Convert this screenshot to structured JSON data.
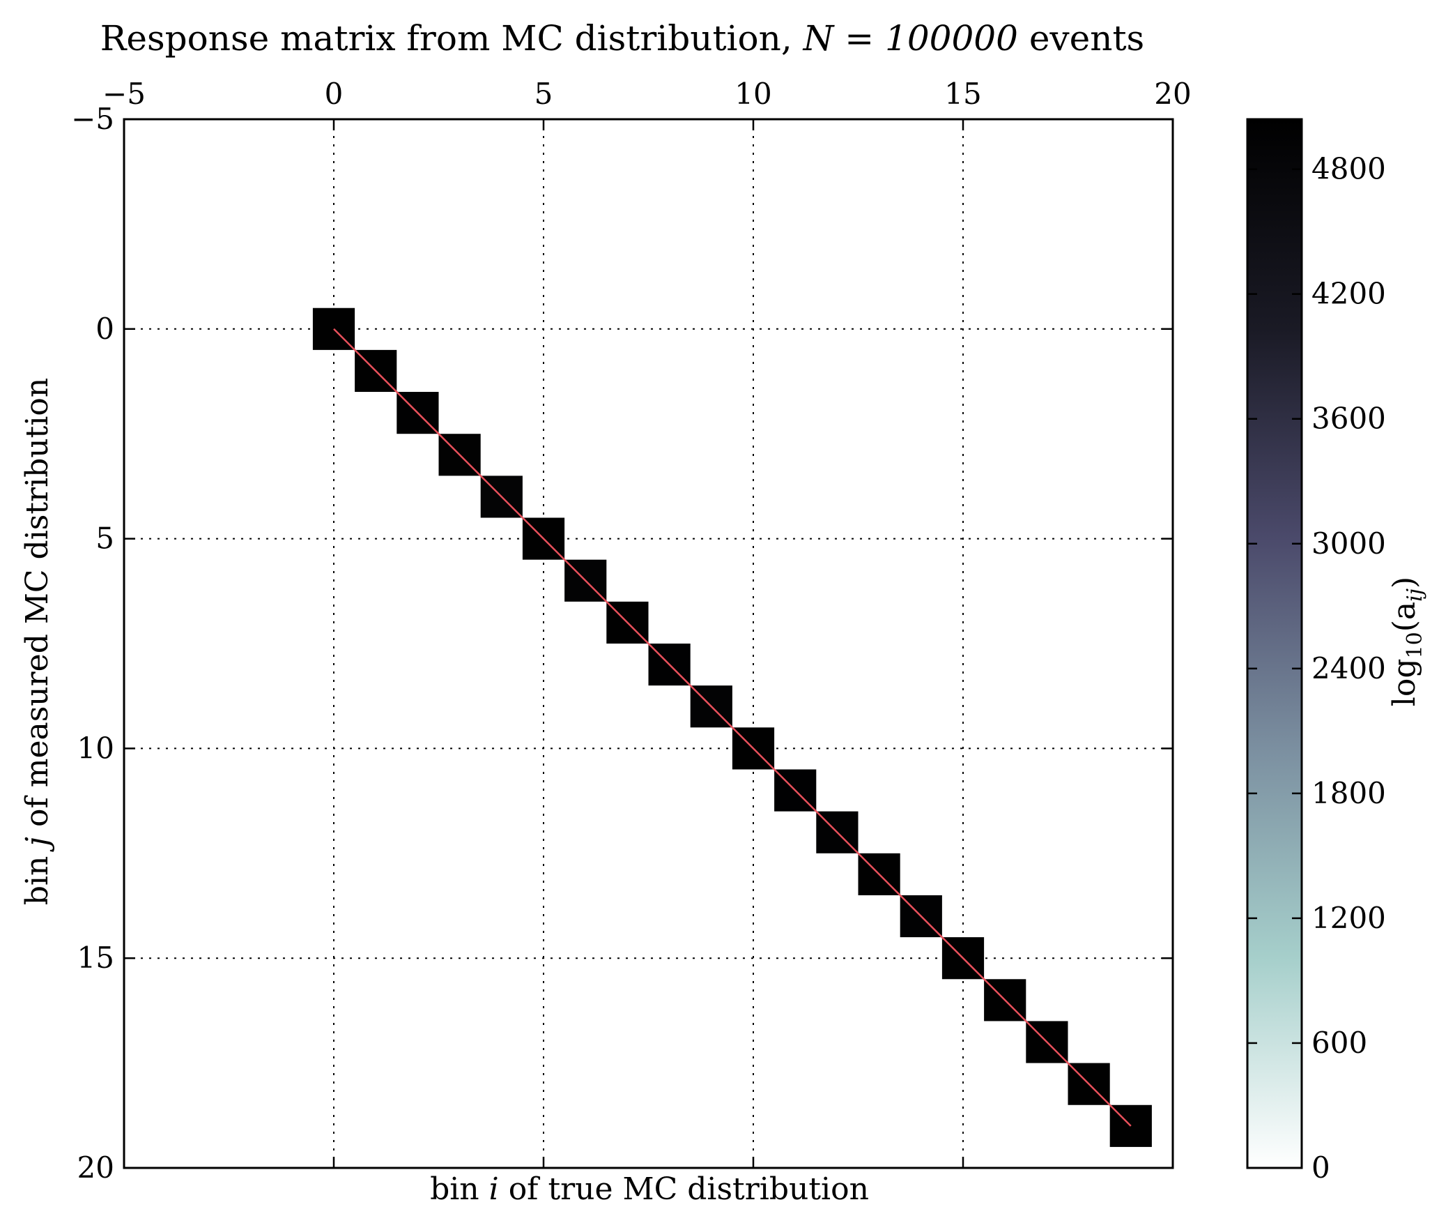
{
  "chart_data": {
    "type": "heatmap",
    "title": "Response matrix from MC distribution, ",
    "title_math": "N = 100000",
    "title_suffix": " events",
    "xlabel_pre": "bin ",
    "xlabel_var": "i",
    "xlabel_post": " of true MC distribution",
    "ylabel_pre": "bin ",
    "ylabel_var": "j",
    "ylabel_post": " of measured MC distribution",
    "xlim": [
      -5,
      20
    ],
    "ylim": [
      20,
      -5
    ],
    "x_ticks": [
      "−5",
      "0",
      "5",
      "10",
      "15",
      "20"
    ],
    "x_tick_values": [
      -5,
      0,
      5,
      10,
      15,
      20
    ],
    "y_ticks": [
      "−5",
      "0",
      "5",
      "10",
      "15",
      "20"
    ],
    "y_tick_values": [
      -5,
      0,
      5,
      10,
      15,
      20
    ],
    "x_axis_position": "top",
    "grid": true,
    "cells": [
      {
        "i": 0,
        "j": 0,
        "value": 5000
      },
      {
        "i": 1,
        "j": 1,
        "value": 5000
      },
      {
        "i": 2,
        "j": 2,
        "value": 4990
      },
      {
        "i": 3,
        "j": 3,
        "value": 4980
      },
      {
        "i": 4,
        "j": 4,
        "value": 4900
      },
      {
        "i": 5,
        "j": 5,
        "value": 5000
      },
      {
        "i": 6,
        "j": 6,
        "value": 4920
      },
      {
        "i": 7,
        "j": 7,
        "value": 5000
      },
      {
        "i": 8,
        "j": 8,
        "value": 4990
      },
      {
        "i": 9,
        "j": 9,
        "value": 4920
      },
      {
        "i": 10,
        "j": 10,
        "value": 5000
      },
      {
        "i": 11,
        "j": 11,
        "value": 4990
      },
      {
        "i": 12,
        "j": 12,
        "value": 4970
      },
      {
        "i": 13,
        "j": 13,
        "value": 5000
      },
      {
        "i": 14,
        "j": 14,
        "value": 4960
      },
      {
        "i": 15,
        "j": 15,
        "value": 5000
      },
      {
        "i": 16,
        "j": 16,
        "value": 5000
      },
      {
        "i": 17,
        "j": 17,
        "value": 5000
      },
      {
        "i": 18,
        "j": 18,
        "value": 5000
      },
      {
        "i": 19,
        "j": 19,
        "value": 5000
      }
    ],
    "diagonal_line": {
      "from": [
        0,
        0
      ],
      "to": [
        19,
        19
      ],
      "color": "#e8505b"
    },
    "colorbar": {
      "label_pre": "log",
      "label_sub": "10",
      "label_open": "(a",
      "label_sub2": "ij",
      "label_close": ")",
      "ticks": [
        "0",
        "600",
        "1200",
        "1800",
        "2400",
        "3000",
        "3600",
        "4200",
        "4800"
      ],
      "tick_values": [
        0,
        600,
        1200,
        1800,
        2400,
        3000,
        3600,
        4200,
        4800
      ],
      "range": [
        0,
        5040
      ],
      "colormap": "bone_r",
      "colormap_stops": [
        "#ffffff",
        "#a6cfcb",
        "#7b8fa0",
        "#4b4a6b",
        "#1a1a25",
        "#000000"
      ]
    }
  }
}
